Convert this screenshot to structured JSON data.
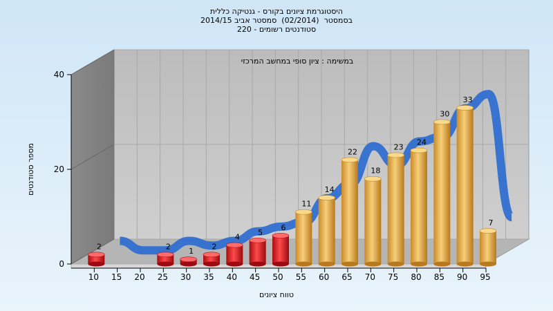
{
  "title_lines": [
    "היסטוגרמת ציונים בקורס - גנטיקה כללית",
    "בסמסטר  (02/2014)  סמסטר אביב 2014/15",
    "סטודנטים רשומים - 220"
  ],
  "chart_data": {
    "type": "bar",
    "title": "היסטוגרמת ציונים בקורס - גנטיקה כללית",
    "subtitle": "במשימה : ציון סופי במחשב המרכזי",
    "xlabel": "טווח ציונים",
    "ylabel": "מספר סטודנטים",
    "ylim": [
      0,
      40
    ],
    "y_ticks": [
      0,
      20,
      40
    ],
    "categories": [
      "10",
      "15",
      "20",
      "25",
      "30",
      "35",
      "40",
      "45",
      "50",
      "55",
      "60",
      "65",
      "70",
      "75",
      "80",
      "85",
      "90",
      "95"
    ],
    "values": [
      2,
      0,
      0,
      2,
      1,
      2,
      4,
      5,
      6,
      11,
      14,
      22,
      18,
      23,
      24,
      30,
      33,
      7
    ],
    "bar_colors": {
      "fail": "#e8202a",
      "pass": "#f0b040"
    },
    "pass_threshold": 55,
    "trend_color": "#2f6fd0",
    "grid": true
  }
}
